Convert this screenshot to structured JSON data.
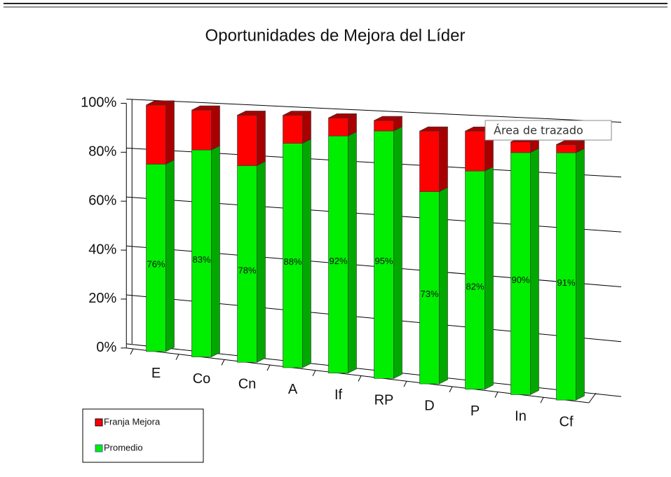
{
  "chart_data": {
    "type": "bar3d_stacked",
    "title": "Oportunidades de Mejora del Líder",
    "categories": [
      "E",
      "Co",
      "Cn",
      "A",
      "If",
      "RP",
      "D",
      "P",
      "In",
      "Cf"
    ],
    "series": [
      {
        "name": "Promedio",
        "color": "#00ee00",
        "values": [
          76,
          83,
          78,
          88,
          92,
          95,
          73,
          82,
          90,
          91
        ],
        "value_labels": [
          "76%",
          "83%",
          "78%",
          "88%",
          "92%",
          "95%",
          "73%",
          "82%",
          "90%",
          "91%"
        ]
      },
      {
        "name": "Franja Mejora",
        "color": "#ff0000",
        "values": [
          24,
          16,
          20,
          11,
          7,
          4,
          23,
          15,
          4,
          3
        ]
      }
    ],
    "ylim": [
      0,
      100
    ],
    "yticks": [
      {
        "value": 0,
        "label": "0%"
      },
      {
        "value": 20,
        "label": "20%"
      },
      {
        "value": 40,
        "label": "40%"
      },
      {
        "value": 60,
        "label": "60%"
      },
      {
        "value": 80,
        "label": "80%"
      },
      {
        "value": 100,
        "label": "100%"
      }
    ],
    "grid": true,
    "tooltip": "Área de trazado"
  }
}
